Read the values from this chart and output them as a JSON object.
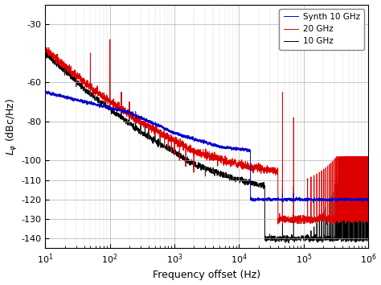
{
  "xlabel": "Frequency offset (Hz)",
  "ylabel": "$L_{\\varphi}$ (dBc/Hz)",
  "xlim_low": 10,
  "xlim_high": 1000000,
  "ylim_low": -145,
  "ylim_high": -20,
  "yticks": [
    -140,
    -130,
    -120,
    -110,
    -100,
    -80,
    -60,
    -30
  ],
  "legend_labels": [
    "Synth 10 GHz",
    "20 GHz",
    "10 GHz"
  ],
  "legend_colors": [
    "#0000ff",
    "#ff0000",
    "#000000"
  ]
}
